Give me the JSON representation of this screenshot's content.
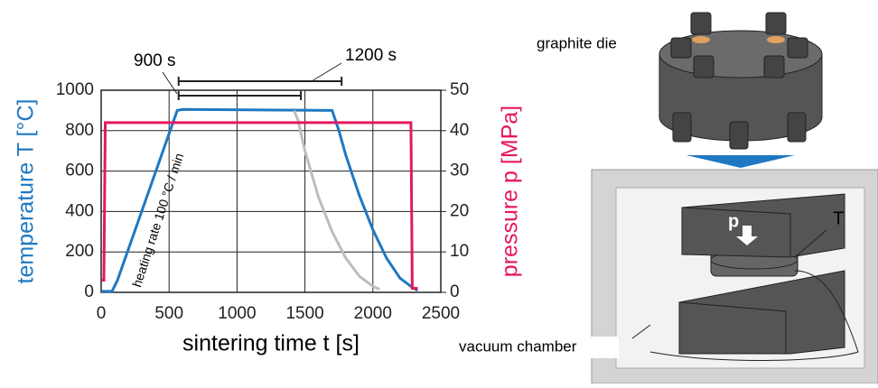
{
  "chart_data": {
    "type": "line",
    "xlabel": "sintering time t [s]",
    "ylabel": "temperature T [°C]",
    "y2label": "pressure p [MPa]",
    "xlim": [
      0,
      2500
    ],
    "xticks": [
      0,
      500,
      1000,
      1500,
      2000,
      2500
    ],
    "ylim": [
      0,
      1000
    ],
    "yticks": [
      0,
      200,
      400,
      600,
      800,
      1000
    ],
    "y2lim": [
      0,
      50
    ],
    "y2ticks": [
      0,
      10,
      20,
      30,
      40,
      50
    ],
    "grid": true,
    "series": [
      {
        "color": "#1f78c1",
        "x": [
          0,
          80,
          120,
          560,
          600,
          1700,
          1750,
          1800,
          1900,
          2000,
          2100,
          2200,
          2300,
          2330
        ],
        "values": [
          5,
          5,
          60,
          900,
          905,
          900,
          800,
          680,
          480,
          310,
          170,
          70,
          20,
          10
        ]
      },
      {
        "color": "#bdbdbd",
        "x": [
          1420,
          1450,
          1500,
          1600,
          1700,
          1800,
          1900,
          2000,
          2050
        ],
        "values": [
          900,
          850,
          700,
          470,
          300,
          170,
          80,
          30,
          15
        ]
      },
      {
        "color": "#e3195f",
        "axis": "y2",
        "x": [
          0,
          20,
          30,
          2280,
          2290,
          2330
        ],
        "values": [
          3,
          3,
          42,
          42,
          1,
          1
        ]
      }
    ],
    "annotations": [
      {
        "text": "900 s",
        "x": [
          570,
          1470
        ]
      },
      {
        "text": "1200 s",
        "x": [
          570,
          1770
        ]
      },
      {
        "text": "heating rate 100 °C / min"
      }
    ]
  },
  "illustration": {
    "die_label": "graphite die",
    "pressure_label": "p",
    "thermo_label": "T",
    "chamber_label": "vacuum chamber"
  }
}
